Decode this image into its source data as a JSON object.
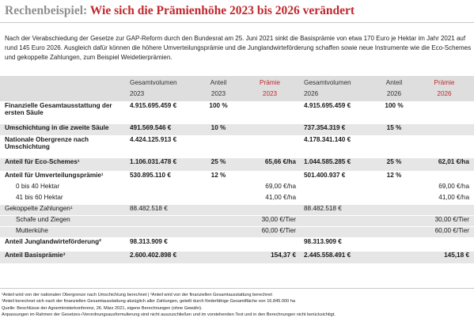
{
  "title": {
    "lead": "Rechenbeispiel:",
    "main": "Wie sich die Prämienhöhe 2023 bis 2026 verändert"
  },
  "intro": "Nach der Verabschiedung der Gesetze zur GAP-Reform durch den Bundesrat am 25. Juni 2021 sinkt die Basisprämie von etwa 170 Euro je Hektar im Jahr 2021 auf rund 145 Euro 2026. Ausgleich dafür können die höhere Umverteilungsprämie und die Junglandwirteförderung schaffen sowie neue Instrumente wie die Eco-Schemes und gekoppelte Zahlungen, zum Beispiel Weidetierprämien.",
  "table": {
    "headers": [
      {
        "label": "Gesamtvolumen",
        "year": "2023"
      },
      {
        "label": "Anteil",
        "year": "2023"
      },
      {
        "label": "Prämie",
        "year": "2023"
      },
      {
        "label": "Gesamtvolumen",
        "year": "2026"
      },
      {
        "label": "Anteil",
        "year": "2026"
      },
      {
        "label": "Prämie",
        "year": "2026"
      }
    ],
    "rows": [
      {
        "label": "Finanzielle Gesamtausstattung der ersten Säule",
        "vol23": "4.915.695.459 €",
        "ant23": "100 %",
        "pr23": "",
        "vol26": "4.915.695.459 €",
        "ant26": "100 %",
        "pr26": ""
      },
      {
        "label": "Umschichtung in die zweite Säule",
        "vol23": "491.569.546 €",
        "ant23": "10 %",
        "pr23": "",
        "vol26": "737.354.319 €",
        "ant26": "15 %",
        "pr26": ""
      },
      {
        "label": "Nationale Obergrenze nach Umschichtung",
        "vol23": "4.424.125.913 €",
        "ant23": "",
        "pr23": "",
        "vol26": "4.178.341.140 €",
        "ant26": "",
        "pr26": ""
      },
      {
        "label": "Anteil für Eco-Schemes¹",
        "vol23": "1.106.031.478 €",
        "ant23": "25 %",
        "pr23": "65,66 €/ha",
        "vol26": "1.044.585.285 €",
        "ant26": "25 %",
        "pr26": "62,01 €/ha"
      },
      {
        "label": "Anteil für Umverteilungsprämie¹",
        "vol23": "530.895.110 €",
        "ant23": "12 %",
        "pr23": "",
        "vol26": "501.400.937 €",
        "ant26": "12 %",
        "pr26": ""
      },
      {
        "label": "0 bis 40 Hektar",
        "vol23": "",
        "ant23": "",
        "pr23": "69,00 €/ha",
        "vol26": "",
        "ant26": "",
        "pr26": "69,00 €/ha"
      },
      {
        "label": "41 bis 60 Hektar",
        "vol23": "",
        "ant23": "",
        "pr23": "41,00 €/ha",
        "vol26": "",
        "ant26": "",
        "pr26": "41,00 €/ha"
      },
      {
        "label": "Gekoppelte Zahlungen¹",
        "vol23": "88.482.518 €",
        "ant23": "",
        "pr23": "",
        "vol26": "88.482.518 €",
        "ant26": "",
        "pr26": ""
      },
      {
        "label": "Schafe und Ziegen",
        "vol23": "",
        "ant23": "",
        "pr23": "30,00 €/Tier",
        "vol26": "",
        "ant26": "",
        "pr26": "30,00 €/Tier"
      },
      {
        "label": "Mutterkühe",
        "vol23": "",
        "ant23": "",
        "pr23": "60,00 €/Tier",
        "vol26": "",
        "ant26": "",
        "pr26": "60,00 €/Tier"
      },
      {
        "label": "Anteil Junglandwirteförderung²",
        "vol23": "98.313.909 €",
        "ant23": "",
        "pr23": "",
        "vol26": "98.313.909 €",
        "ant26": "",
        "pr26": ""
      },
      {
        "label": "Anteil Basisprämie³",
        "vol23": "2.600.402.898 €",
        "ant23": "",
        "pr23": "154,37 €",
        "vol26": "2.445.558.491 €",
        "ant26": "",
        "pr26": "145,18 €"
      }
    ]
  },
  "notes": [
    "¹Anteil wird von der nationalen Obergrenze nach Umschichtung berechnet  |  ²Anteil wird von der finanziellen Gesamtausstattung berechnet",
    "³Anteil berechnet sich nach der finanziellen Gesamtausstattung abzüglich aller Zahlungen, geteilt durch förderfähige Gesamtfläche von 16.845.000 ha",
    "Quelle: Beschlüsse der Agrarministerkonferenz, 26. März 2021, eigene Berechnungen (ohne Gewähr).",
    "Anpassungen im Rahmen der Gesetzes-/Verordnungsausformulierung sind nicht auszuschließen und im vorstehenden Text und in den Berechnungen nicht berücksichtigt."
  ]
}
